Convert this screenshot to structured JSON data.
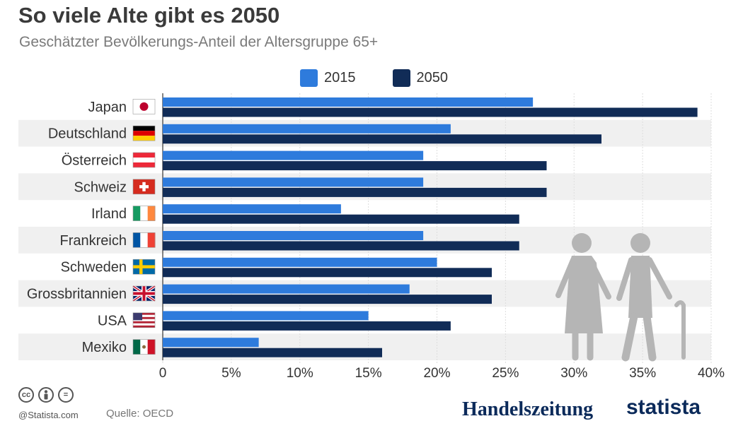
{
  "header": {
    "title": "So viele Alte gibt es 2050",
    "subtitle": "Geschätzter Bevölkerungs-Anteil der Altersgruppe 65+"
  },
  "colors": {
    "series_2015": "#2e7bdc",
    "series_2050": "#112c57",
    "row_stripe": "#f0f0f0",
    "gridline": "#dddddd",
    "illustration": "#b5b5b5"
  },
  "icons": {
    "flags": [
      "japan-flag-icon",
      "germany-flag-icon",
      "austria-flag-icon",
      "switzerland-flag-icon",
      "ireland-flag-icon",
      "france-flag-icon",
      "sweden-flag-icon",
      "uk-flag-icon",
      "usa-flag-icon",
      "mexico-flag-icon"
    ],
    "illustration": "elderly-couple-icon",
    "license": [
      "cc-icon",
      "person-icon",
      "equals-icon"
    ]
  },
  "chart_data": {
    "type": "bar",
    "orientation": "horizontal",
    "categories": [
      "Japan",
      "Deutschland",
      "Österreich",
      "Schweiz",
      "Irland",
      "Frankreich",
      "Schweden",
      "Grossbritannien",
      "USA",
      "Mexiko"
    ],
    "series": [
      {
        "name": "2015",
        "values": [
          27,
          21,
          19,
          19,
          13,
          19,
          20,
          18,
          15,
          7
        ]
      },
      {
        "name": "2050",
        "values": [
          39,
          32,
          28,
          28,
          26,
          26,
          24,
          24,
          21,
          16
        ]
      }
    ],
    "xlim": [
      0,
      40
    ],
    "xticks": [
      0,
      5,
      10,
      15,
      20,
      25,
      30,
      35,
      40
    ],
    "xtick_labels": [
      "0",
      "5%",
      "10%",
      "15%",
      "20%",
      "25%",
      "30%",
      "35%",
      "40%"
    ],
    "grid": true,
    "legend_position": "top-center"
  },
  "footer": {
    "copyright": "@Statista.com",
    "source": "Quelle: OECD",
    "logo_handelszeitung": "Handelszeitung",
    "logo_statista": "statista"
  }
}
